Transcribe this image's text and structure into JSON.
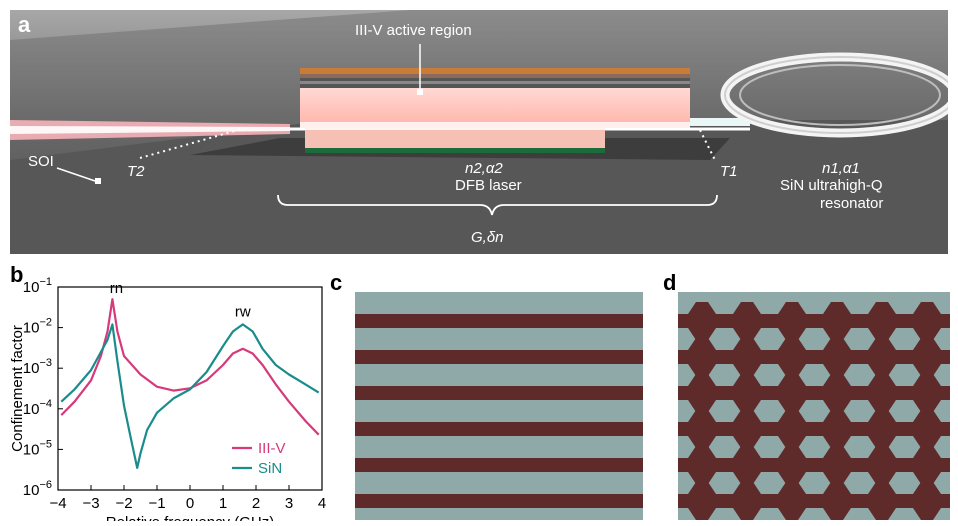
{
  "panel_a": {
    "letter": "a",
    "labels": {
      "active_region": "III-V active region",
      "soi": "SOI",
      "t2": "T2",
      "t1": "T1",
      "n2_alpha2": "n2,α2",
      "dfb_laser": "DFB laser",
      "n1_alpha1": "n1,α1",
      "resonator_line1": "SiN ultrahigh-Q",
      "resonator_line2": "resonator",
      "g_dn": "G,δn"
    }
  },
  "panel_b": {
    "letter": "b",
    "peak_labels": {
      "rn": "rn",
      "rw": "rw"
    },
    "chart_data": {
      "type": "line",
      "xlabel": "Relative frequency (GHz)",
      "ylabel": "Confinement factor",
      "xlim": [
        -4,
        4
      ],
      "ylim_log10": [
        -6,
        -1
      ],
      "y_scale": "log",
      "x_ticks": [
        "−4",
        "−3",
        "−2",
        "−1",
        "0",
        "1",
        "2",
        "3",
        "4"
      ],
      "y_ticks": [
        "10−6",
        "10−5",
        "10−4",
        "10−3",
        "10−2",
        "10−1"
      ],
      "legend_position": "bottom-right",
      "series": [
        {
          "name": "III-V",
          "color": "#d63a7a",
          "x": [
            -3.9,
            -3.5,
            -3.0,
            -2.7,
            -2.5,
            -2.35,
            -2.2,
            -2.0,
            -1.5,
            -1.0,
            -0.5,
            0.0,
            0.5,
            1.0,
            1.3,
            1.6,
            1.9,
            2.2,
            2.6,
            3.0,
            3.5,
            3.9
          ],
          "y": [
            7e-05,
            0.00015,
            0.0005,
            0.002,
            0.008,
            0.05,
            0.008,
            0.002,
            0.0007,
            0.00035,
            0.00028,
            0.00032,
            0.0005,
            0.0012,
            0.0023,
            0.003,
            0.0023,
            0.0012,
            0.0004,
            0.00015,
            5e-05,
            2.3e-05
          ]
        },
        {
          "name": "SiN",
          "color": "#1a8c8c",
          "x": [
            -3.9,
            -3.5,
            -3.0,
            -2.7,
            -2.5,
            -2.35,
            -2.2,
            -2.0,
            -1.8,
            -1.6,
            -1.5,
            -1.3,
            -1.0,
            -0.5,
            0.0,
            0.5,
            1.0,
            1.3,
            1.6,
            1.9,
            2.2,
            2.6,
            3.0,
            3.5,
            3.9
          ],
          "y": [
            0.00015,
            0.0003,
            0.0009,
            0.0025,
            0.005,
            0.012,
            0.0015,
            0.00012,
            2e-05,
            3.5e-06,
            8e-06,
            3e-05,
            8e-05,
            0.00018,
            0.0003,
            0.0008,
            0.0035,
            0.008,
            0.012,
            0.008,
            0.003,
            0.0012,
            0.0007,
            0.0004,
            0.00025
          ]
        }
      ]
    }
  },
  "panel_c": {
    "letter": "c",
    "colors": {
      "light": "#8fa8a8",
      "dark": "#5e2a2a"
    }
  },
  "panel_d": {
    "letter": "d",
    "colors": {
      "light": "#8fa8a8",
      "dark": "#5e2a2a"
    }
  }
}
